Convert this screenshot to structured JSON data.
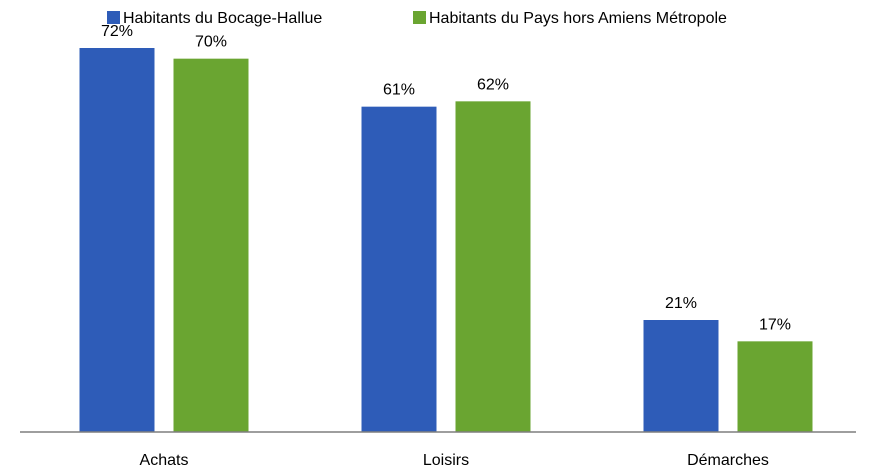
{
  "chart_data": {
    "type": "bar",
    "categories": [
      "Achats",
      "Loisirs",
      "Démarches"
    ],
    "series": [
      {
        "name": "Habitants du Bocage-Hallue",
        "values": [
          72,
          61,
          21
        ],
        "labels": [
          "72%",
          "61%",
          "21%"
        ],
        "color": "#2e5cb8"
      },
      {
        "name": "Habitants du Pays hors Amiens Métropole",
        "values": [
          70,
          62,
          17
        ],
        "labels": [
          "70%",
          "62%",
          "17%"
        ],
        "color": "#6aa531"
      }
    ],
    "unit": "%",
    "ylim": [
      0,
      81
    ],
    "grid": false,
    "legend_position": "top-center",
    "axis_color": "#7f7f7f"
  }
}
